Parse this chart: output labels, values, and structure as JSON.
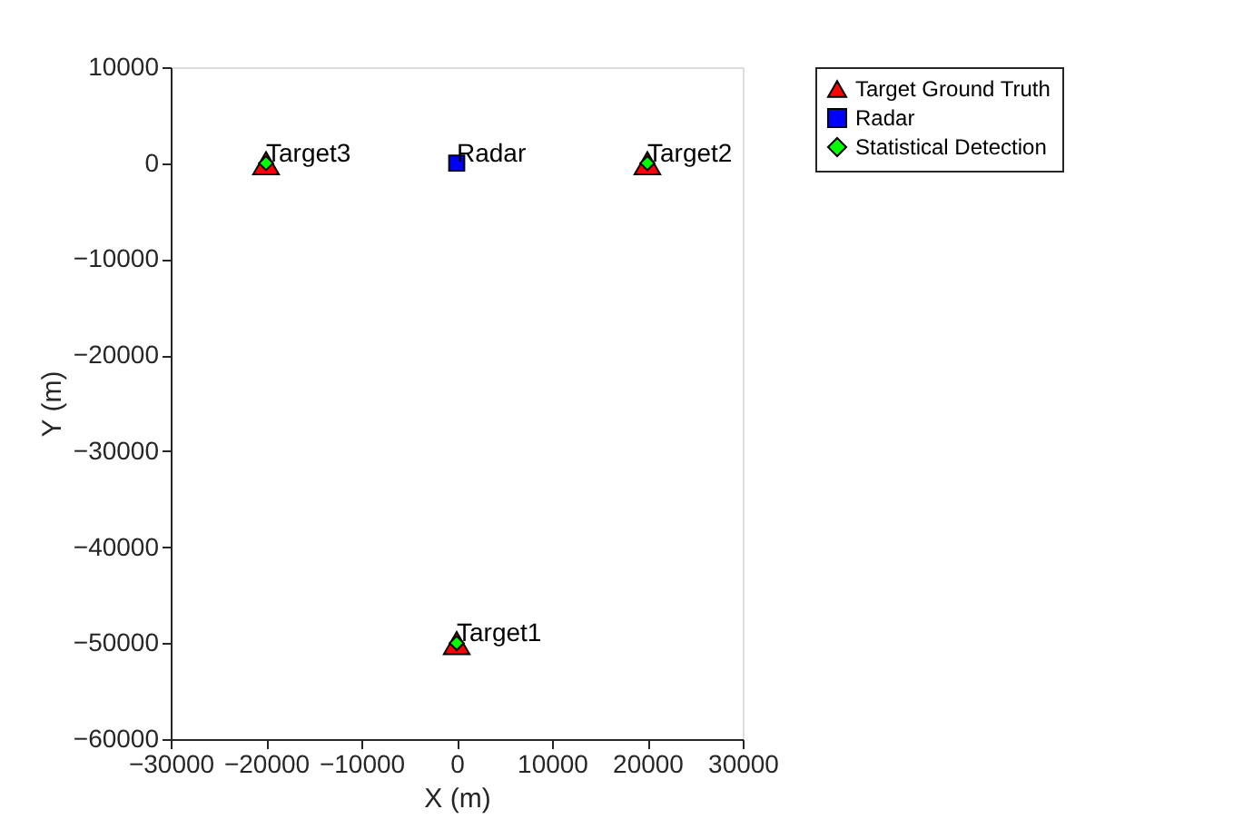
{
  "chart_data": {
    "type": "scatter",
    "xlabel": "X (m)",
    "ylabel": "Y (m)",
    "xlim": [
      -30000,
      30000
    ],
    "xticks": [
      -30000,
      -20000,
      -10000,
      0,
      10000,
      20000,
      30000
    ],
    "ylim": [
      -60000,
      10000
    ],
    "yticks": [
      -60000,
      -50000,
      -40000,
      -30000,
      -20000,
      -10000,
      0,
      10000
    ],
    "grid": false,
    "legend": "top right",
    "series": [
      {
        "name": "Target Ground Truth",
        "color": "#ff0000",
        "marker": "triangle",
        "x": [
          0,
          20000,
          -20000
        ],
        "values": [
          -50000,
          0,
          0
        ]
      },
      {
        "name": "Radar",
        "color": "#0000ff",
        "marker": "square",
        "x": [
          0
        ],
        "values": [
          0
        ]
      },
      {
        "name": "Statistical Detection",
        "color": "#00ff00",
        "marker": "diamond",
        "x": [
          0,
          20000,
          -20000
        ],
        "values": [
          -50000,
          0,
          0
        ]
      }
    ],
    "annotations": [
      {
        "text": "Target1",
        "x": 0,
        "y": -50000
      },
      {
        "text": "Target2",
        "x": 20000,
        "y": 0
      },
      {
        "text": "Target3",
        "x": -20000,
        "y": 0
      },
      {
        "text": "Radar",
        "x": 0,
        "y": 0
      }
    ]
  }
}
